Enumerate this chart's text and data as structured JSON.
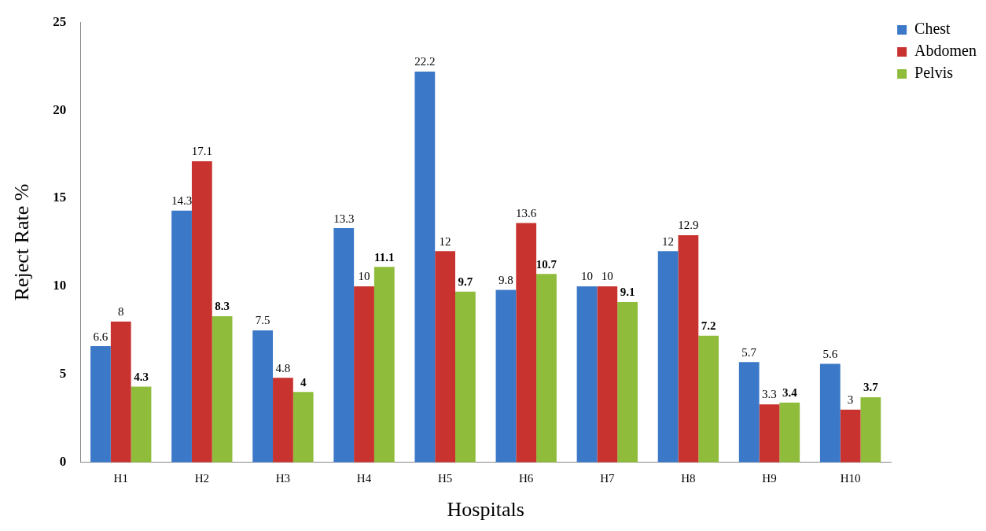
{
  "chart_data": {
    "type": "bar",
    "xlabel": "Hospitals",
    "ylabel": "Reject Rate %",
    "categories": [
      "H1",
      "H2",
      "H3",
      "H4",
      "H5",
      "H6",
      "H7",
      "H8",
      "H9",
      "H10"
    ],
    "series": [
      {
        "name": "Chest",
        "color": "#3b78c8",
        "values": [
          6.6,
          14.3,
          7.5,
          13.3,
          22.2,
          9.8,
          10,
          12,
          5.7,
          5.6
        ]
      },
      {
        "name": "Abdomen",
        "color": "#c8322f",
        "values": [
          8,
          17.1,
          4.8,
          10,
          12,
          13.6,
          10,
          12.9,
          3.3,
          3
        ]
      },
      {
        "name": "Pelvis",
        "color": "#8fbc3b",
        "values": [
          4.3,
          8.3,
          4,
          11.1,
          9.7,
          10.7,
          9.1,
          7.2,
          3.4,
          3.7
        ]
      }
    ],
    "ylim": [
      0,
      25
    ],
    "yticks": [
      0,
      5,
      10,
      15,
      20,
      25
    ],
    "grid": false,
    "legend": "top right",
    "data_labels": true
  }
}
